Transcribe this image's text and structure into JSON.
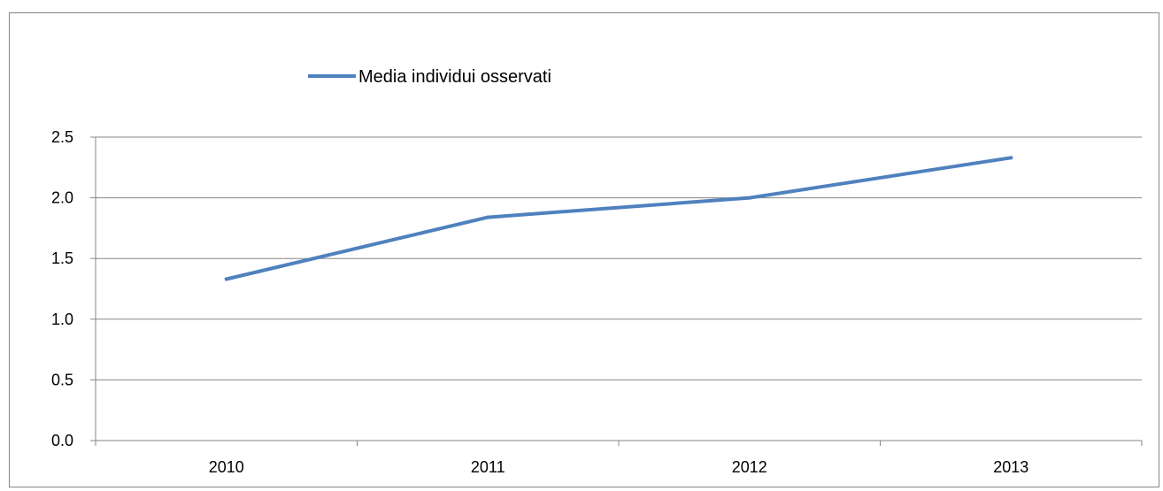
{
  "chart_data": {
    "type": "line",
    "categories": [
      "2010",
      "2011",
      "2012",
      "2013"
    ],
    "series": [
      {
        "name": "Media individui osservati",
        "values": [
          1.33,
          1.84,
          2.0,
          2.33
        ],
        "color": "#4F81BD"
      }
    ],
    "ylim": [
      0,
      2.5
    ],
    "y_ticks": [
      "0.0",
      "0.5",
      "1.0",
      "1.5",
      "2.0",
      "2.5"
    ],
    "grid": true,
    "legend_position": "top-center",
    "colors": {
      "gridline": "#868686",
      "axis": "#868686",
      "frame": "#868686"
    }
  }
}
